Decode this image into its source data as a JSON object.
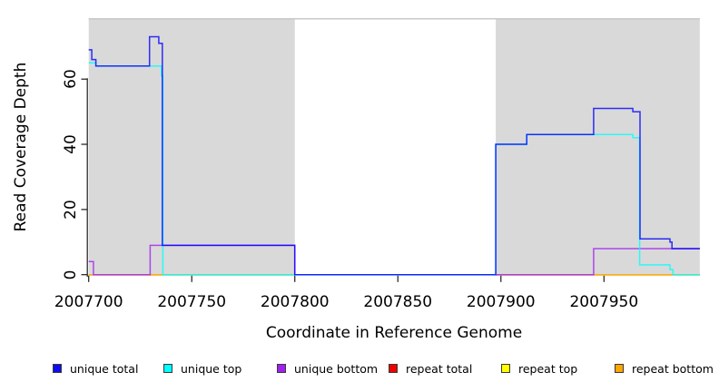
{
  "chart_data": {
    "type": "line",
    "style": "step",
    "title": "",
    "xlabel": "Coordinate in Reference Genome",
    "ylabel": "Read Coverage Depth",
    "x_ticks": [
      "2007700",
      "2007750",
      "2007800",
      "2007850",
      "2007900",
      "2007950"
    ],
    "x_tick_values": [
      2007700,
      2007750,
      2007800,
      2007850,
      2007900,
      2007950
    ],
    "y_ticks": [
      "0",
      "20",
      "40",
      "60"
    ],
    "y_tick_values": [
      0,
      20,
      40,
      60
    ],
    "xlim": [
      2007700,
      2007996.5
    ],
    "ylim": [
      0,
      78.5
    ],
    "grid": false,
    "background_color": "#ffffff",
    "masked_region_color": "#d9d9d9",
    "masked_regions": [
      [
        2007700,
        2007800
      ],
      [
        2007897.5,
        2007996.5
      ]
    ],
    "series": [
      {
        "name": "repeat total",
        "color": "#ee0000",
        "steps": [
          [
            2007700,
            0
          ]
        ]
      },
      {
        "name": "repeat top",
        "color": "#ffff00",
        "steps": [
          [
            2007700,
            0
          ]
        ]
      },
      {
        "name": "repeat bottom",
        "color": "#ffa500",
        "steps": [
          [
            2007700,
            0
          ]
        ]
      },
      {
        "name": "unique bottom",
        "color": "#a020f0",
        "steps": [
          [
            2007700,
            4
          ],
          [
            2007702.3,
            0
          ],
          [
            2007729.8,
            9
          ],
          [
            2007800,
            0
          ],
          [
            2007945,
            8
          ]
        ]
      },
      {
        "name": "unique top",
        "color": "#00ffff",
        "steps": [
          [
            2007700,
            65
          ],
          [
            2007703.5,
            64
          ],
          [
            2007735.3,
            61
          ],
          [
            2007736,
            0
          ],
          [
            2007897.5,
            40
          ],
          [
            2007912.5,
            43
          ],
          [
            2007964,
            42
          ],
          [
            2007967.3,
            3
          ],
          [
            2007982,
            1.5
          ],
          [
            2007983.5,
            0
          ]
        ]
      },
      {
        "name": "unique total",
        "color": "#0000ff",
        "steps": [
          [
            2007700,
            69
          ],
          [
            2007701.5,
            66
          ],
          [
            2007703.5,
            64
          ],
          [
            2007729.5,
            73
          ],
          [
            2007734,
            71
          ],
          [
            2007735.7,
            9
          ],
          [
            2007800,
            0
          ],
          [
            2007897.5,
            40
          ],
          [
            2007912.5,
            43
          ],
          [
            2007945,
            51
          ],
          [
            2007964,
            50
          ],
          [
            2007967.5,
            11
          ],
          [
            2007982,
            10
          ],
          [
            2007983,
            8
          ]
        ]
      }
    ]
  },
  "legend": {
    "items": [
      {
        "label": "unique total",
        "color": "#0d0dee"
      },
      {
        "label": "unique top",
        "color": "#00ffff"
      },
      {
        "label": "unique bottom",
        "color": "#a020f0"
      },
      {
        "label": "repeat total",
        "color": "#ee0000"
      },
      {
        "label": "repeat top",
        "color": "#ffff00"
      },
      {
        "label": "repeat bottom",
        "color": "#ffa500"
      }
    ]
  }
}
